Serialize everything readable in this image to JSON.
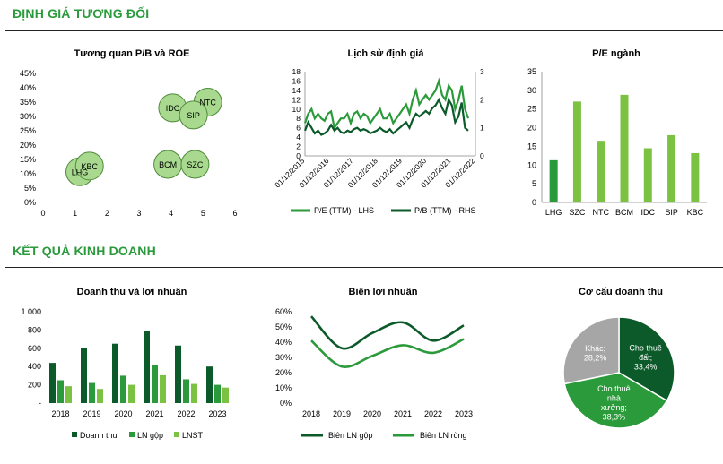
{
  "sections": {
    "valuation": "ĐỊNH GIÁ TƯƠNG ĐỐI",
    "business": "KẾT QUẢ KINH DOANH"
  },
  "colors": {
    "dark": "#0c5a2a",
    "mid": "#2b9a3a",
    "light": "#7cc242",
    "bubble": "#a8d98f",
    "grey": "#a6a6a6",
    "title": "#2a9a3c"
  },
  "chart_data": [
    {
      "id": "pb_roe",
      "type": "scatter",
      "title": "Tương quan P/B và ROE",
      "xlim": [
        0,
        6
      ],
      "ylim": [
        0,
        0.45
      ],
      "xticks": [
        "0",
        "1",
        "2",
        "3",
        "4",
        "5",
        "6"
      ],
      "yticks": [
        "0%",
        "5%",
        "10%",
        "15%",
        "20%",
        "25%",
        "30%",
        "35%",
        "40%",
        "45%"
      ],
      "points": [
        {
          "label": "LHG",
          "x": 1.15,
          "y": 0.107
        },
        {
          "label": "KBC",
          "x": 1.45,
          "y": 0.127
        },
        {
          "label": "BCM",
          "x": 3.9,
          "y": 0.133
        },
        {
          "label": "SZC",
          "x": 4.75,
          "y": 0.133
        },
        {
          "label": "IDC",
          "x": 4.05,
          "y": 0.33
        },
        {
          "label": "NTC",
          "x": 5.15,
          "y": 0.35
        },
        {
          "label": "SIP",
          "x": 4.7,
          "y": 0.305
        }
      ]
    },
    {
      "id": "valuation_history",
      "type": "line",
      "title": "Lịch sử định giá",
      "ylim": [
        0,
        18
      ],
      "y2lim": [
        0,
        3
      ],
      "yticks": [
        "0",
        "2",
        "4",
        "6",
        "8",
        "10",
        "12",
        "14",
        "16",
        "18"
      ],
      "y2ticks": [
        "0",
        "1",
        "2",
        "3"
      ],
      "xticks": [
        "01/12/2015",
        "01/12/2016",
        "01/12/2017",
        "01/12/2018",
        "01/12/2019",
        "01/12/2020",
        "01/12/2021",
        "01/12/2022"
      ],
      "series": [
        {
          "name": "P/E (TTM) - LHS",
          "axis": "left",
          "values": [
            7,
            9,
            10,
            8,
            9,
            8,
            7.5,
            9,
            9.5,
            6,
            7,
            8,
            8,
            9,
            7,
            9,
            9.5,
            8,
            9,
            8.5,
            7,
            8,
            9,
            10,
            8,
            8,
            9,
            7,
            8,
            9,
            10,
            11,
            9,
            12,
            14,
            11,
            12,
            13,
            12,
            13,
            14,
            16,
            13,
            12,
            15,
            14,
            10,
            12,
            15,
            10,
            8
          ]
        },
        {
          "name": "P/B (TTM) - RHS",
          "axis": "right",
          "values": [
            0.9,
            1.2,
            1.0,
            0.8,
            0.9,
            0.75,
            0.8,
            0.9,
            1.1,
            0.9,
            1.0,
            0.85,
            0.8,
            0.9,
            0.85,
            0.95,
            1.0,
            0.9,
            0.95,
            0.9,
            0.8,
            0.85,
            0.9,
            1.0,
            0.9,
            0.85,
            0.95,
            0.8,
            0.9,
            1.0,
            1.1,
            1.2,
            1.0,
            1.3,
            1.5,
            1.4,
            1.5,
            1.6,
            1.5,
            1.7,
            1.8,
            2.0,
            1.7,
            1.5,
            2.0,
            1.8,
            1.2,
            1.4,
            1.9,
            1.0,
            0.9
          ]
        }
      ]
    },
    {
      "id": "pe_sector",
      "type": "bar",
      "title": "P/E ngành",
      "categories": [
        "LHG",
        "SZC",
        "NTC",
        "BCM",
        "IDC",
        "SIP",
        "KBC"
      ],
      "values": [
        11.3,
        27,
        16.5,
        28.8,
        14.5,
        18,
        13.2
      ],
      "ylim": [
        0,
        35
      ],
      "yticks": [
        "0",
        "5",
        "10",
        "15",
        "20",
        "25",
        "30",
        "35"
      ],
      "highlight": "LHG"
    },
    {
      "id": "revenue_profit",
      "type": "bar",
      "title": "Doanh thu và lợi nhuận",
      "categories": [
        "2018",
        "2019",
        "2020",
        "2021",
        "2022",
        "2023"
      ],
      "ylim": [
        0,
        1000
      ],
      "yticks": [
        "-",
        "200",
        "400",
        "600",
        "800",
        "1.000"
      ],
      "series": [
        {
          "name": "Doanh thu",
          "values": [
            440,
            600,
            650,
            790,
            630,
            400
          ]
        },
        {
          "name": "LN gộp",
          "values": [
            250,
            220,
            300,
            420,
            260,
            200
          ]
        },
        {
          "name": "LNST",
          "values": [
            185,
            155,
            200,
            305,
            210,
            170
          ]
        }
      ]
    },
    {
      "id": "profit_margin",
      "type": "line",
      "title": "Biên lợi nhuận",
      "categories": [
        "2018",
        "2019",
        "2020",
        "2021",
        "2022",
        "2023"
      ],
      "ylim": [
        0,
        0.6
      ],
      "yticks": [
        "0%",
        "10%",
        "20%",
        "30%",
        "40%",
        "50%",
        "60%"
      ],
      "series": [
        {
          "name": "Biên LN gộp",
          "values": [
            0.57,
            0.36,
            0.46,
            0.53,
            0.41,
            0.51
          ]
        },
        {
          "name": "Biên LN ròng",
          "values": [
            0.41,
            0.24,
            0.31,
            0.38,
            0.33,
            0.42
          ]
        }
      ]
    },
    {
      "id": "revenue_structure",
      "type": "pie",
      "title": "Cơ cấu doanh thu",
      "slices": [
        {
          "label": "Cho thuê đất;",
          "value_text": "33,4%",
          "value": 33.4
        },
        {
          "label": "Cho thuê nhà xưởng;",
          "value_text": "38,3%",
          "value": 38.3
        },
        {
          "label": "Khác;",
          "value_text": "28,2%",
          "value": 28.2
        }
      ]
    }
  ]
}
